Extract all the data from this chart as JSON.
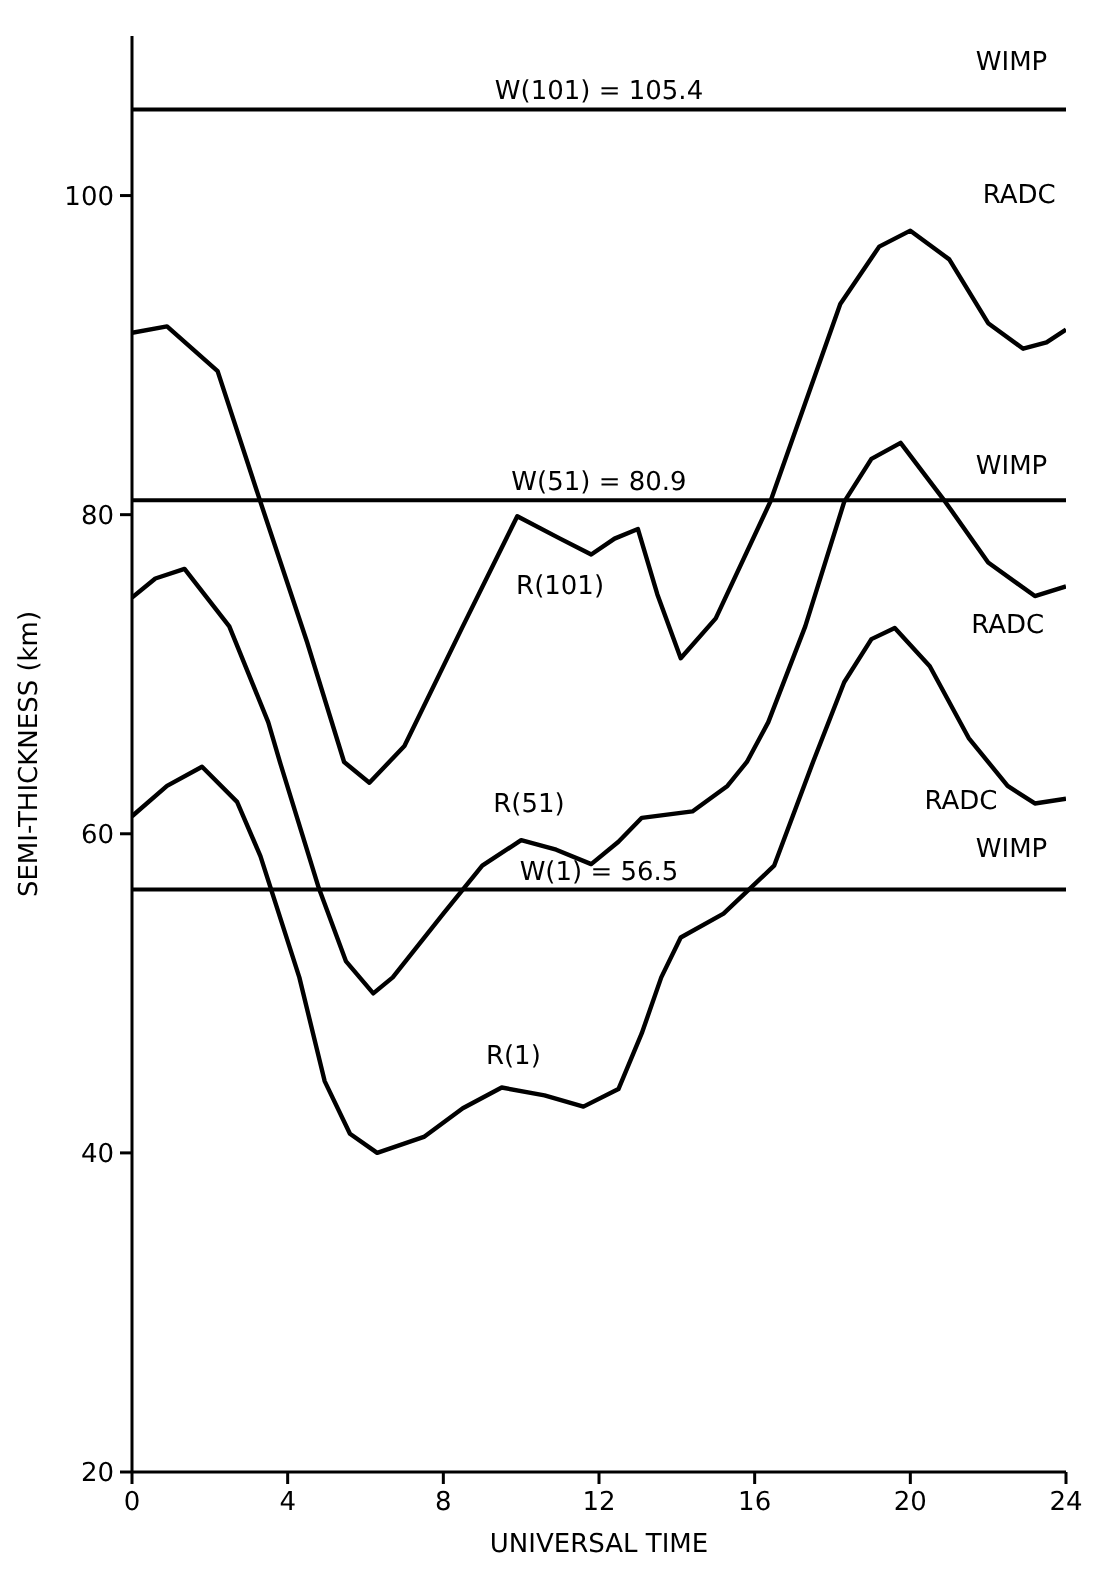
{
  "chart_data": {
    "type": "line",
    "xlabel": "UNIVERSAL TIME",
    "ylabel": "SEMI-THICKNESS (km)",
    "xlim": [
      0,
      24
    ],
    "xticks": [
      0,
      4,
      8,
      12,
      16,
      20,
      24
    ],
    "ylim": [
      20,
      110
    ],
    "yticks": [
      20,
      40,
      60,
      80,
      100
    ],
    "grid": false,
    "legend": false,
    "marker": "none",
    "line_style": "solid",
    "series": [
      {
        "name": "R(101)",
        "color": "#000000",
        "x": [
          0,
          0.9,
          2.2,
          3.3,
          4.5,
          5.45,
          6.1,
          7,
          8.5,
          9.9,
          11,
          11.8,
          12.4,
          13,
          13.5,
          14.1,
          15,
          16.4,
          17.3,
          18.2,
          19.2,
          20,
          21,
          22,
          22.9,
          23.5,
          24
        ],
        "values": [
          91.4,
          91.8,
          89,
          80.8,
          72,
          64.5,
          63.2,
          65.5,
          73,
          79.9,
          78.5,
          77.5,
          78.5,
          79.1,
          75,
          71,
          73.5,
          80.8,
          87,
          93.2,
          96.8,
          97.8,
          96,
          92,
          90.4,
          90.8,
          91.6
        ]
      },
      {
        "name": "R(51)",
        "color": "#000000",
        "x": [
          0,
          0.6,
          1.35,
          2.5,
          3.5,
          3.8,
          4.8,
          5.5,
          6.2,
          6.7,
          8,
          9,
          10,
          10.9,
          11.8,
          12.5,
          13.1,
          14.4,
          15.3,
          15.8,
          16.35,
          17.3,
          18.3,
          19,
          19.75,
          20.9,
          22,
          23.2,
          24
        ],
        "values": [
          74.8,
          76,
          76.6,
          73,
          67,
          64.5,
          56.6,
          52,
          50,
          51,
          55,
          58,
          59.6,
          59,
          58.1,
          59.5,
          61,
          61.4,
          63,
          64.5,
          67,
          73,
          80.8,
          83.5,
          84.5,
          80.8,
          77,
          74.9,
          75.5
        ]
      },
      {
        "name": "R(1)",
        "color": "#000000",
        "x": [
          0,
          0.9,
          1.8,
          2.7,
          3.3,
          4.3,
          4.95,
          5.6,
          6.3,
          7.5,
          8.5,
          9.5,
          10.6,
          11.6,
          12.5,
          13.1,
          13.6,
          14.1,
          15.2,
          16.5,
          17.5,
          18.3,
          19,
          19.6,
          20.5,
          21.5,
          22.5,
          23.2,
          24
        ],
        "values": [
          61.1,
          63,
          64.2,
          62,
          58.6,
          51,
          44.5,
          41.2,
          40,
          41,
          42.8,
          44.1,
          43.6,
          42.9,
          44,
          47.5,
          51,
          53.5,
          55,
          58,
          64.5,
          69.5,
          72.2,
          72.9,
          70.5,
          66,
          63,
          61.9,
          62.2
        ]
      }
    ],
    "ref_lines": [
      {
        "axis": "y",
        "value": 105.4,
        "label": "W(101) = 105.4",
        "color": "#000000"
      },
      {
        "axis": "y",
        "value": 80.9,
        "label": "W(51) = 80.9",
        "color": "#000000"
      },
      {
        "axis": "y",
        "value": 56.5,
        "label": "W(1) = 56.5",
        "color": "#000000"
      }
    ],
    "annotations": [
      "RADC",
      "RADC",
      "RADC",
      "WIMP",
      "WIMP",
      "WIMP"
    ]
  }
}
